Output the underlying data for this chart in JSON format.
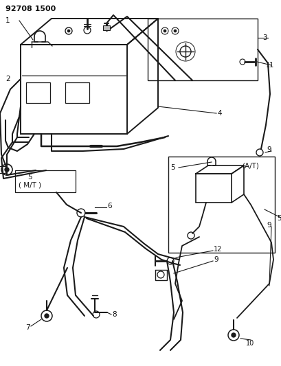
{
  "title": "92708 1500",
  "bg_color": "#ffffff",
  "line_color": "#1a1a1a",
  "label_color": "#111111",
  "fig_width": 4.09,
  "fig_height": 5.33,
  "dpi": 100
}
